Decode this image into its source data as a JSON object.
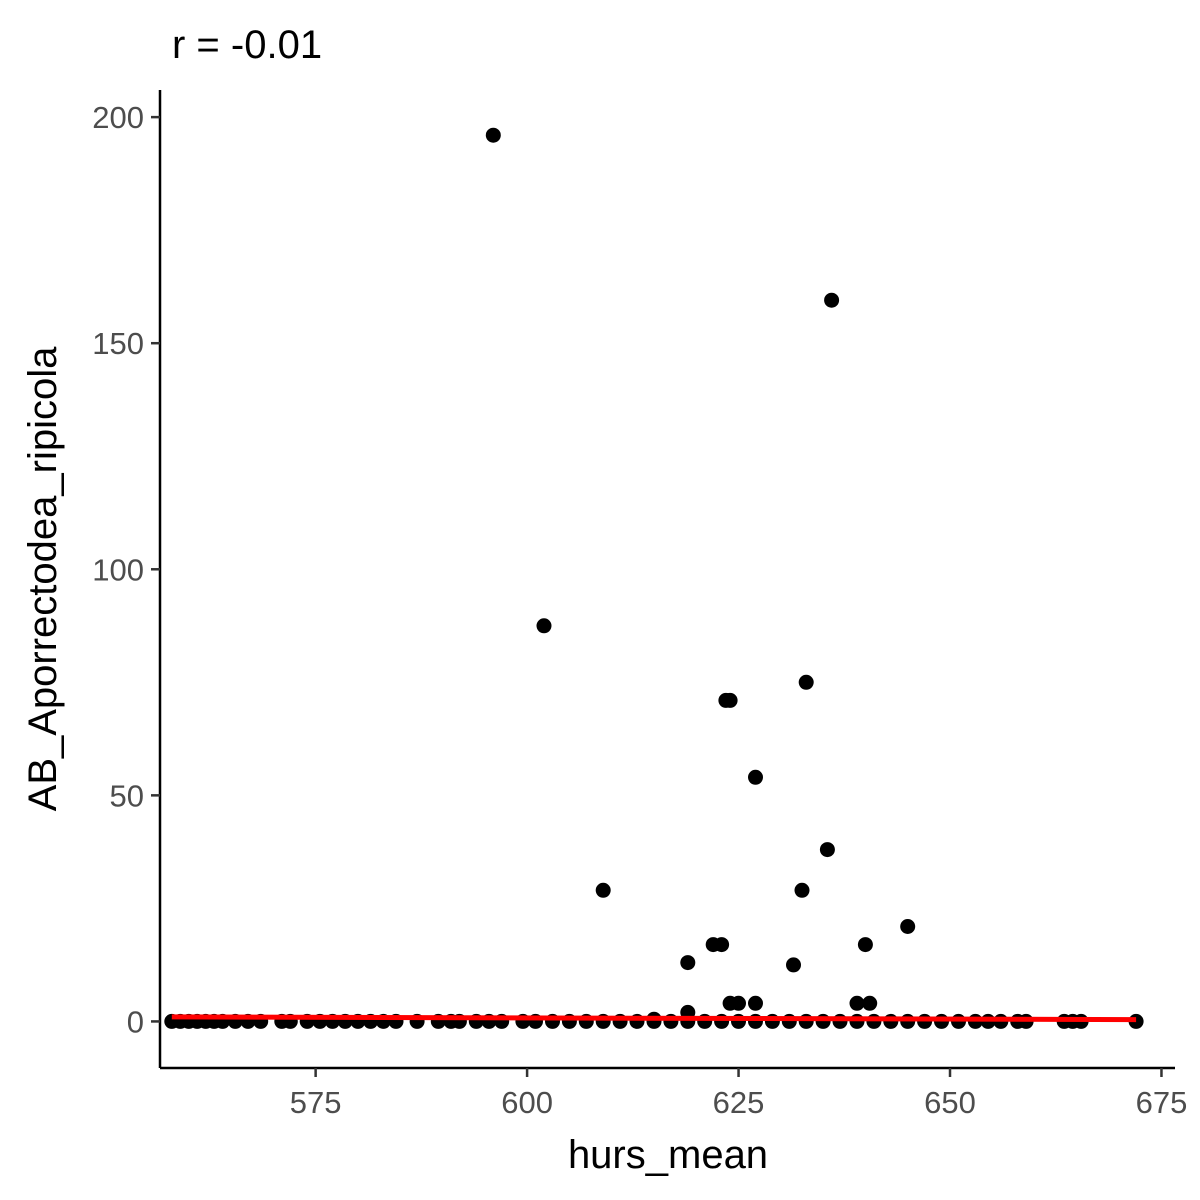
{
  "chart_data": {
    "type": "scatter",
    "title": "r = -0.01",
    "xlabel": "hurs_mean",
    "ylabel": "AB_Aporrectodea_ripicola",
    "xlim": [
      556.6,
      676.6
    ],
    "ylim": [
      -10.3,
      206.0
    ],
    "x_ticks": [
      575,
      600,
      625,
      650,
      675
    ],
    "y_ticks": [
      0,
      50,
      100,
      150,
      200
    ],
    "grid": false,
    "legend": "none",
    "point_color": "#000000",
    "trend_color": "#ff0000",
    "trend_line": {
      "x": [
        558,
        672
      ],
      "y": [
        1.0,
        0.4
      ]
    },
    "points": [
      {
        "x": 596,
        "y": 196
      },
      {
        "x": 636,
        "y": 159.5
      },
      {
        "x": 602,
        "y": 87.5
      },
      {
        "x": 633,
        "y": 75
      },
      {
        "x": 623.5,
        "y": 71
      },
      {
        "x": 624,
        "y": 71
      },
      {
        "x": 627,
        "y": 54
      },
      {
        "x": 635.5,
        "y": 38
      },
      {
        "x": 609,
        "y": 29
      },
      {
        "x": 632.5,
        "y": 29
      },
      {
        "x": 645,
        "y": 21
      },
      {
        "x": 622,
        "y": 17
      },
      {
        "x": 623,
        "y": 17
      },
      {
        "x": 640,
        "y": 17
      },
      {
        "x": 619,
        "y": 13
      },
      {
        "x": 631.5,
        "y": 12.5
      },
      {
        "x": 624,
        "y": 4
      },
      {
        "x": 625,
        "y": 4
      },
      {
        "x": 627,
        "y": 4
      },
      {
        "x": 639,
        "y": 4
      },
      {
        "x": 640.5,
        "y": 4
      },
      {
        "x": 619,
        "y": 2
      },
      {
        "x": 615,
        "y": 0.5
      },
      {
        "x": 558,
        "y": 0
      },
      {
        "x": 559,
        "y": 0
      },
      {
        "x": 560,
        "y": 0
      },
      {
        "x": 561,
        "y": 0
      },
      {
        "x": 562,
        "y": 0
      },
      {
        "x": 563,
        "y": 0
      },
      {
        "x": 564,
        "y": 0
      },
      {
        "x": 565.5,
        "y": 0
      },
      {
        "x": 567,
        "y": 0
      },
      {
        "x": 568.5,
        "y": 0
      },
      {
        "x": 571,
        "y": 0
      },
      {
        "x": 572,
        "y": 0
      },
      {
        "x": 574,
        "y": 0
      },
      {
        "x": 575.5,
        "y": 0
      },
      {
        "x": 577,
        "y": 0
      },
      {
        "x": 578.5,
        "y": 0
      },
      {
        "x": 580,
        "y": 0
      },
      {
        "x": 581.5,
        "y": 0
      },
      {
        "x": 583,
        "y": 0
      },
      {
        "x": 584.5,
        "y": 0
      },
      {
        "x": 587,
        "y": 0
      },
      {
        "x": 589.5,
        "y": 0
      },
      {
        "x": 591,
        "y": 0
      },
      {
        "x": 592,
        "y": 0
      },
      {
        "x": 594,
        "y": 0
      },
      {
        "x": 595.5,
        "y": 0
      },
      {
        "x": 597,
        "y": 0
      },
      {
        "x": 599.5,
        "y": 0
      },
      {
        "x": 601,
        "y": 0
      },
      {
        "x": 603,
        "y": 0
      },
      {
        "x": 605,
        "y": 0
      },
      {
        "x": 607,
        "y": 0
      },
      {
        "x": 609,
        "y": 0
      },
      {
        "x": 611,
        "y": 0
      },
      {
        "x": 613,
        "y": 0
      },
      {
        "x": 615,
        "y": 0
      },
      {
        "x": 617,
        "y": 0
      },
      {
        "x": 619,
        "y": 0
      },
      {
        "x": 621,
        "y": 0
      },
      {
        "x": 623,
        "y": 0
      },
      {
        "x": 625,
        "y": 0
      },
      {
        "x": 627,
        "y": 0
      },
      {
        "x": 629,
        "y": 0
      },
      {
        "x": 631,
        "y": 0
      },
      {
        "x": 633,
        "y": 0
      },
      {
        "x": 635,
        "y": 0
      },
      {
        "x": 637,
        "y": 0
      },
      {
        "x": 639,
        "y": 0
      },
      {
        "x": 641,
        "y": 0
      },
      {
        "x": 643,
        "y": 0
      },
      {
        "x": 645,
        "y": 0
      },
      {
        "x": 647,
        "y": 0
      },
      {
        "x": 649,
        "y": 0
      },
      {
        "x": 651,
        "y": 0
      },
      {
        "x": 653,
        "y": 0
      },
      {
        "x": 654.5,
        "y": 0
      },
      {
        "x": 656,
        "y": 0
      },
      {
        "x": 658,
        "y": 0
      },
      {
        "x": 659,
        "y": 0
      },
      {
        "x": 663.5,
        "y": 0
      },
      {
        "x": 664.5,
        "y": 0
      },
      {
        "x": 665.5,
        "y": 0
      },
      {
        "x": 672,
        "y": 0
      }
    ]
  }
}
